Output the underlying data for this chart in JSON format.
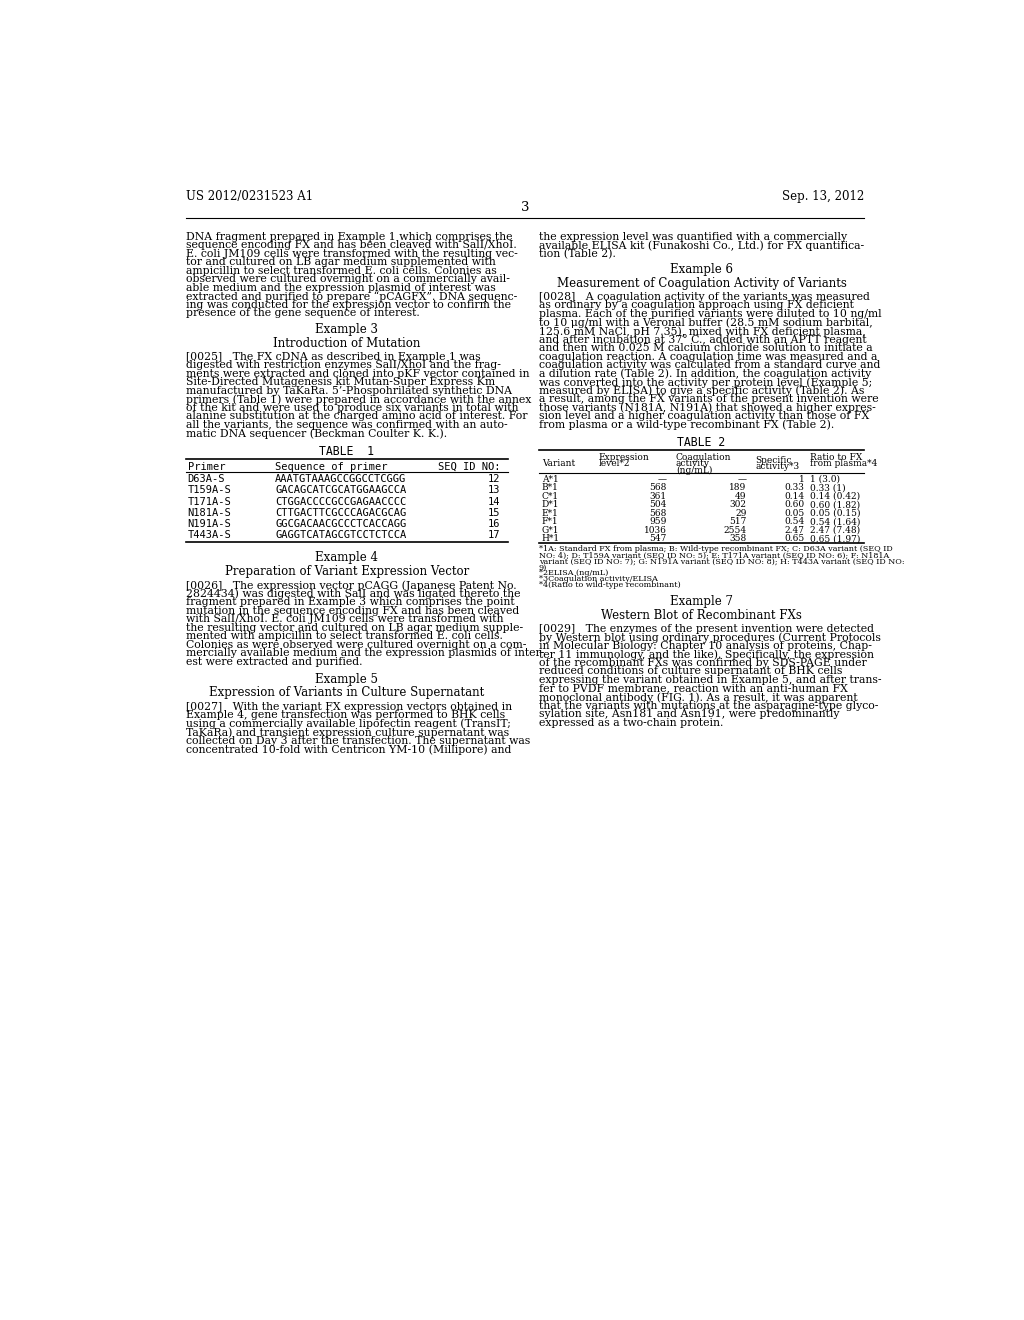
{
  "bg_color": "#ffffff",
  "header_left": "US 2012/0231523 A1",
  "header_right": "Sep. 13, 2012",
  "page_number": "3",
  "left_column": {
    "para1": "DNA fragment prepared in Example 1 which comprises the\nsequence encoding FX and has been cleaved with SalI/XhoI.\nE. coli JM109 cells were transformed with the resulting vec-\ntor and cultured on LB agar medium supplemented with\nampicillin to select transformed E. coli cells. Colonies as\nobserved were cultured overnight on a commercially avail-\nable medium and the expression plasmid of interest was\nextracted and purified to prepare “pCAGFX”. DNA sequenc-\ning was conducted for the expression vector to confirm the\npresence of the gene sequence of interest.",
    "ex3_title": "Example 3",
    "ex3_sub": "Introduction of Mutation",
    "para2": "[0025]   The FX cDNA as described in Example 1 was\ndigested with restriction enzymes SalI/XhoI and the frag-\nments were extracted and cloned into pKF vector contained in\nSite-Directed Mutagenesis kit Mutan-Super Express Km\nmanufactured by TaKaRa. 5’-Phospohrilated synthetic DNA\nprimers (Table 1) were prepared in accordance with the annex\nof the kit and were used to produce six variants in total with\nalanine substitution at the charged amino acid of interest. For\nall the variants, the sequence was confirmed with an auto-\nmatic DNA sequencer (Beckman Coulter K. K.).",
    "table1_title": "TABLE  1",
    "table1_headers": [
      "Primer",
      "Sequence of primer",
      "SEQ ID NO:"
    ],
    "table1_rows": [
      [
        "D63A-S",
        "AAATGTAAAGCCGGCCTCGGG",
        "12"
      ],
      [
        "T159A-S",
        "GACAGCATCGCATGGAAGCCA",
        "13"
      ],
      [
        "T171A-S",
        "CTGGACCCCGCCGAGAACCCC",
        "14"
      ],
      [
        "N181A-S",
        "CTTGACTTCGCCCAGACGCAG",
        "15"
      ],
      [
        "N191A-S",
        "GGCGACAACGCCCTCACCAGG",
        "16"
      ],
      [
        "T443A-S",
        "GAGGTCATAGCGTCCTCTCCA",
        "17"
      ]
    ],
    "ex4_title": "Example 4",
    "ex4_sub": "Preparation of Variant Expression Vector",
    "para3": "[0026]   The expression vector pCAGG (Japanese Patent No.\n2824434) was digested with SalI and was ligated thereto the\nfragment prepared in Example 3 which comprises the point\nmutation in the sequence encoding FX and has been cleaved\nwith SalI/XhoI. E. coli JM109 cells were transformed with\nthe resulting vector and cultured on LB agar medium supple-\nmented with ampicillin to select transformed E. coli cells.\nColonies as were observed were cultured overnight on a com-\nmercially available medium and the expression plasmids of inter-\nest were extracted and purified.",
    "ex5_title": "Example 5",
    "ex5_sub": "Expression of Variants in Culture Supernatant",
    "para4": "[0027]   With the variant FX expression vectors obtained in\nExample 4, gene transfection was performed to BHK cells\nusing a commercially available lipofectin reagent (TransIT;\nTaKaRa) and transient expression culture supernatant was\ncollected on Day 3 after the transfection. The supernatant was\nconcentrated 10-fold with Centricon YM-10 (Millipore) and"
  },
  "right_column": {
    "para1": "the expression level was quantified with a commercially\navailable ELISA kit (Funakoshi Co., Ltd.) for FX quantifica-\ntion (Table 2).",
    "ex6_title": "Example 6",
    "ex6_sub": "Measurement of Coagulation Activity of Variants",
    "para2": "[0028]   A coagulation activity of the variants was measured\nas ordinary by a coagulation approach using FX deficient\nplasma. Each of the purified variants were diluted to 10 ng/ml\nto 10 μg/ml with a Veronal buffer (28.5 mM sodium barbital,\n125.6 mM NaCl, pH 7.35), mixed with FX deficient plasma,\nand after incubation at 37° C., added with an APTT reagent\nand then with 0.025 M calcium chloride solution to initiate a\ncoagulation reaction. A coagulation time was measured and a\ncoagulation activity was calculated from a standard curve and\na dilution rate (Table 2). In addition, the coagulation activity\nwas converted into the activity per protein level (Example 5;\nmeasured by ELISA) to give a specific activity (Table 2). As\na result, among the FX variants of the present invention were\nthose variants (N181A, N191A) that showed a higher expres-\nsion level and a higher coagulation activity than those of FX\nfrom plasma or a wild-type recombinant FX (Table 2).",
    "table2_title": "TABLE 2",
    "table2_footnotes": [
      "*1A: Standard FX from plasma; B: Wild-type recombinant FX; C: D63A variant (SEQ ID",
      "NO: 4); D: T159A variant (SEQ ID NO: 5); E: T171A variant (SEQ ID NO: 6); F: N181A",
      "variant (SEQ ID NO: 7); G: N191A variant (SEQ ID NO: 8); H: T443A variant (SEQ ID NO:",
      "9)",
      "*2ELISA (ng/mL)",
      "*3Coagulation activity/ELISA",
      "*4(Ratio to wild-type recombinant)"
    ],
    "table2_rows": [
      [
        "A*1",
        "—",
        "—",
        "1",
        "1 (3.0)"
      ],
      [
        "B*1",
        "568",
        "189",
        "0.33",
        "0.33 (1)"
      ],
      [
        "C*1",
        "361",
        "49",
        "0.14",
        "0.14 (0.42)"
      ],
      [
        "D*1",
        "504",
        "302",
        "0.60",
        "0.60 (1.82)"
      ],
      [
        "E*1",
        "568",
        "29",
        "0.05",
        "0.05 (0.15)"
      ],
      [
        "F*1",
        "959",
        "517",
        "0.54",
        "0.54 (1.64)"
      ],
      [
        "G*1",
        "1036",
        "2554",
        "2.47",
        "2.47 (7.48)"
      ],
      [
        "H*1",
        "547",
        "358",
        "0.65",
        "0.65 (1.97)"
      ]
    ],
    "ex7_title": "Example 7",
    "ex7_sub": "Western Blot of Recombinant FXs",
    "para3": "[0029]   The enzymes of the present invention were detected\nby Western blot using ordinary procedures (Current Protocols\nin Molecular Biology: Chapter 10 analysis of proteins, Chap-\nter 11 immunology, and the like). Specifically, the expression\nof the recombinant FXs was confirmed by SDS-PAGE under\nreduced conditions of culture supernatant of BHK cells\nexpressing the variant obtained in Example 5, and after trans-\nfer to PVDF membrane, reaction with an anti-human FX\nmonoclonal antibody (FIG. 1). As a result, it was apparent\nthat the variants with mutations at the asparagine-type glyco-\nsylation site, Asn181 and Asn191, were predominantly\nexpressed as a two-chain protein."
  }
}
